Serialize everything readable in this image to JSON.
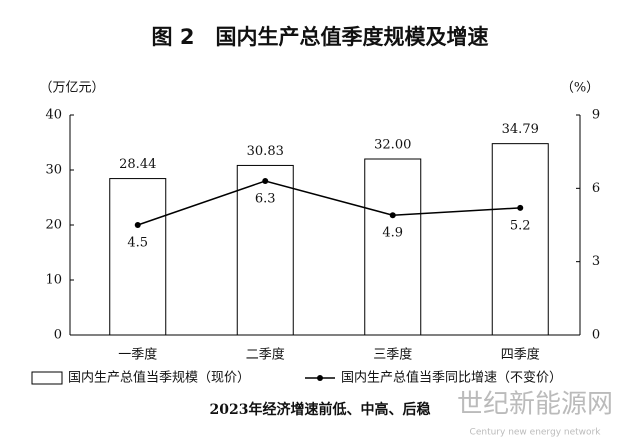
{
  "chart_data": {
    "type": "bar-line",
    "title": "图 2　国内生产总值季度规模及增速",
    "y_label": "（万亿元）",
    "y2_label": "（%）",
    "caption": "2023年经济增速前低、中高、后稳",
    "watermark": "世纪新能源网",
    "watermark_sub": "Century new energy network",
    "categories": [
      "一季度",
      "二季度",
      "三季度",
      "四季度"
    ],
    "series": [
      {
        "name": "国内生产总值当季规模（现价）",
        "type": "bar",
        "color": "#ffffff",
        "values": [
          28.44,
          30.83,
          32,
          34.79
        ],
        "value_labels": [
          "28.44",
          "30.83",
          "32.00",
          "34.79"
        ]
      },
      {
        "name": "国内生产总值当季同比增速（不变价）",
        "type": "line",
        "axis": "y2",
        "color": "#000000",
        "values": [
          4.5,
          6.3,
          4.9,
          5.2
        ]
      }
    ],
    "ylim": [
      0,
      40
    ],
    "yticks": [
      0,
      10,
      20,
      30,
      40
    ],
    "y2lim": [
      0,
      9
    ],
    "y2ticks": [
      0,
      3,
      6,
      9
    ],
    "grid": false
  }
}
